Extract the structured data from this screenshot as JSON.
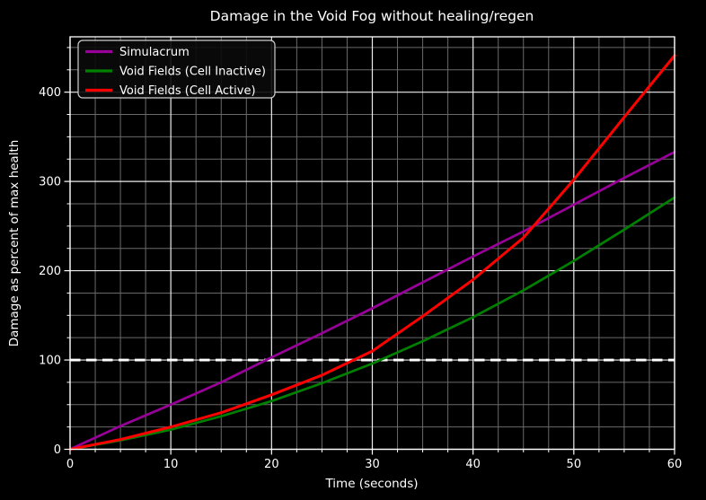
{
  "chart_data": {
    "type": "line",
    "title": "Damage in the Void Fog without healing/regen",
    "xlabel": "Time (seconds)",
    "ylabel": "Damage as percent of max health",
    "xlim": [
      0,
      60
    ],
    "ylim": [
      0,
      462
    ],
    "x_major_ticks": [
      0,
      10,
      20,
      30,
      40,
      50,
      60
    ],
    "y_major_ticks": [
      0,
      100,
      200,
      300,
      400
    ],
    "x_minor_step": 2.5,
    "y_minor_step": 25,
    "grid": {
      "on": true,
      "major_color": "#ededed",
      "minor_color": "#6a6a6a"
    },
    "background_color": "#000000",
    "text_color": "#ffffff",
    "reference_line": {
      "y": 100,
      "color": "#ffffff",
      "style": "dashed"
    },
    "legend": {
      "position": "upper-left",
      "border_color": "#cfcfcf",
      "background": "#0a0a0a"
    },
    "x": [
      0,
      5,
      10,
      15,
      20,
      25,
      30,
      35,
      40,
      45,
      50,
      55,
      60
    ],
    "series": [
      {
        "name": "Simulacrum",
        "color": "#990099",
        "values": [
          0,
          26,
          50,
          75,
          103,
          130,
          158,
          187,
          216,
          244,
          274,
          304,
          333
        ]
      },
      {
        "name": "Void Fields (Cell Inactive)",
        "color": "#008000",
        "values": [
          0,
          10,
          22,
          37,
          54,
          74,
          96,
          121,
          148,
          178,
          211,
          246,
          282
        ]
      },
      {
        "name": "Void Fields (Cell Active)",
        "color": "#ff0000",
        "values": [
          0,
          11,
          25,
          41,
          61,
          83,
          110,
          149,
          190,
          237,
          302,
          372,
          441
        ]
      }
    ]
  }
}
